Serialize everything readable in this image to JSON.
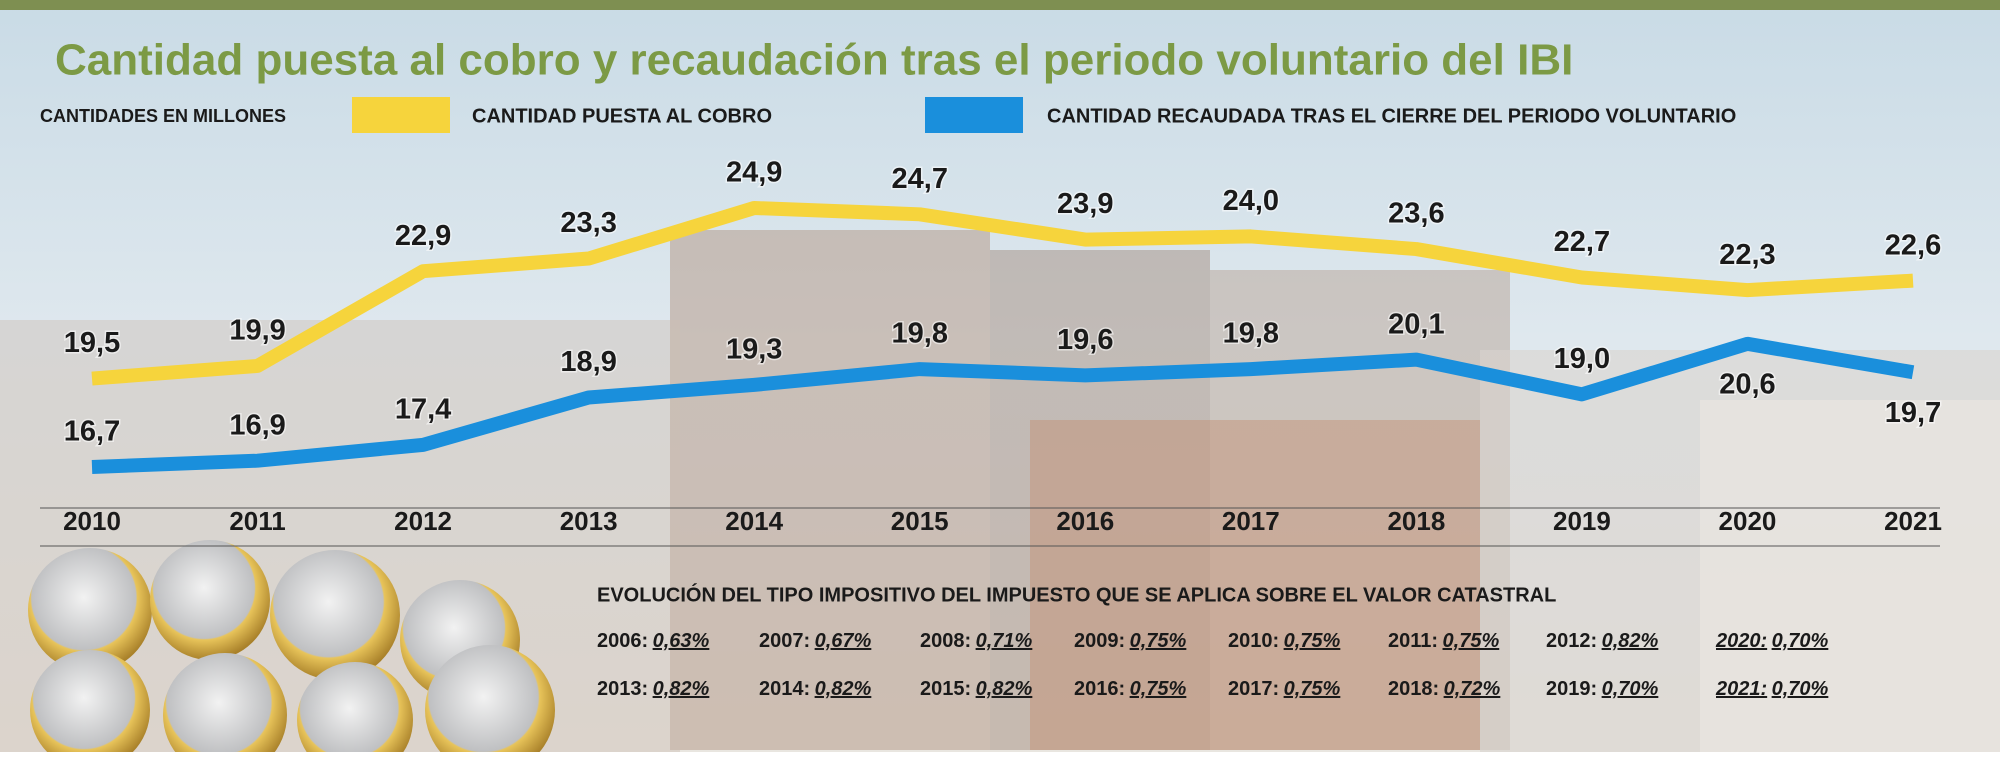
{
  "chart_data": {
    "type": "line",
    "title": "Cantidad puesta al cobro y recaudación tras el periodo voluntario del IBI",
    "subtitle": "CANTIDADES  EN MILLONES",
    "categories": [
      "2010",
      "2011",
      "2012",
      "2013",
      "2014",
      "2015",
      "2016",
      "2017",
      "2018",
      "2019",
      "2020",
      "2021"
    ],
    "series": [
      {
        "name": "CANTIDAD PUESTA AL COBRO",
        "color": "#f6d43c",
        "values": [
          19.5,
          19.9,
          22.9,
          23.3,
          24.9,
          24.7,
          23.9,
          24.0,
          23.6,
          22.7,
          22.3,
          22.6
        ],
        "value_labels": [
          "19,5",
          "19,9",
          "22,9",
          "23,3",
          "24,9",
          "24,7",
          "23,9",
          "24,0",
          "23,6",
          "22,7",
          "22,3",
          "22,6"
        ]
      },
      {
        "name": "CANTIDAD RECAUDADA TRAS EL CIERRE DEL PERIODO VOLUNTARIO",
        "color": "#1a8fdc",
        "values": [
          16.7,
          16.9,
          17.4,
          18.9,
          19.3,
          19.8,
          19.6,
          19.8,
          20.1,
          19.0,
          20.6,
          19.7
        ],
        "value_labels": [
          "16,7",
          "16,9",
          "17,4",
          "18,9",
          "19,3",
          "19,8",
          "19,6",
          "19,8",
          "20,1",
          "19,0",
          "20,6",
          "19,7"
        ]
      }
    ]
  },
  "tax_rates": {
    "title": "EVOLUCIÓN DEL TIPO IMPOSITIVO DEL IMPUESTO QUE SE APLICA SOBRE EL VALOR CATASTRAL",
    "rows": [
      [
        {
          "year": "2006:",
          "rate": "0,63%"
        },
        {
          "year": "2007:",
          "rate": "0,67%"
        },
        {
          "year": "2008:",
          "rate": "0,71%"
        },
        {
          "year": "2009:",
          "rate": "0,75%"
        },
        {
          "year": "2010:",
          "rate": "0,75%"
        },
        {
          "year": "2011:",
          "rate": "0,75%"
        },
        {
          "year": "2012:",
          "rate": "0,82%"
        },
        {
          "year": "2020:",
          "rate": "0,70%"
        }
      ],
      [
        {
          "year": "2013:",
          "rate": "0,82%"
        },
        {
          "year": "2014:",
          "rate": "0,82%"
        },
        {
          "year": "2015:",
          "rate": "0,82%"
        },
        {
          "year": "2016:",
          "rate": "0,75%"
        },
        {
          "year": "2017:",
          "rate": "0,75%"
        },
        {
          "year": "2018:",
          "rate": "0,72%"
        },
        {
          "year": "2019:",
          "rate": "0,70%"
        },
        {
          "year": "2021:",
          "rate": "0,70%"
        }
      ]
    ]
  }
}
